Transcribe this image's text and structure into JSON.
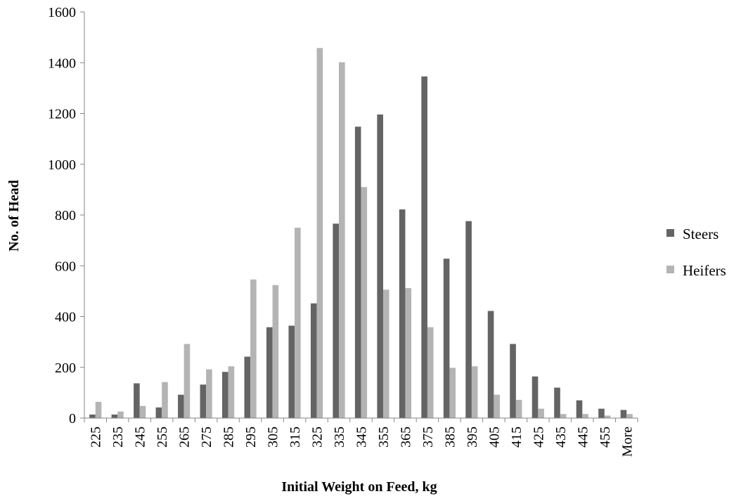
{
  "chart_data": {
    "type": "bar",
    "title": "",
    "xlabel": "Initial Weight on Feed, kg",
    "ylabel": "No. of Head",
    "ylim": [
      0,
      1600
    ],
    "yticks": [
      0,
      200,
      400,
      600,
      800,
      1000,
      1200,
      1400,
      1600
    ],
    "grid": false,
    "legend_position": "right",
    "categories": [
      "225",
      "235",
      "245",
      "255",
      "265",
      "275",
      "285",
      "295",
      "305",
      "315",
      "325",
      "335",
      "345",
      "355",
      "365",
      "375",
      "385",
      "395",
      "405",
      "415",
      "425",
      "435",
      "445",
      "455",
      "More"
    ],
    "series": [
      {
        "name": "Steers",
        "color": "#646464",
        "values": [
          14,
          14,
          137,
          42,
          92,
          132,
          182,
          242,
          358,
          364,
          452,
          766,
          1148,
          1196,
          822,
          1346,
          628,
          776,
          422,
          292,
          164,
          120,
          70,
          37,
          32
        ]
      },
      {
        "name": "Heifers",
        "color": "#b4b4b4",
        "values": [
          64,
          26,
          48,
          142,
          292,
          192,
          204,
          546,
          524,
          750,
          1458,
          1402,
          910,
          506,
          512,
          358,
          198,
          204,
          92,
          72,
          37,
          16,
          16,
          10,
          16
        ]
      }
    ]
  }
}
